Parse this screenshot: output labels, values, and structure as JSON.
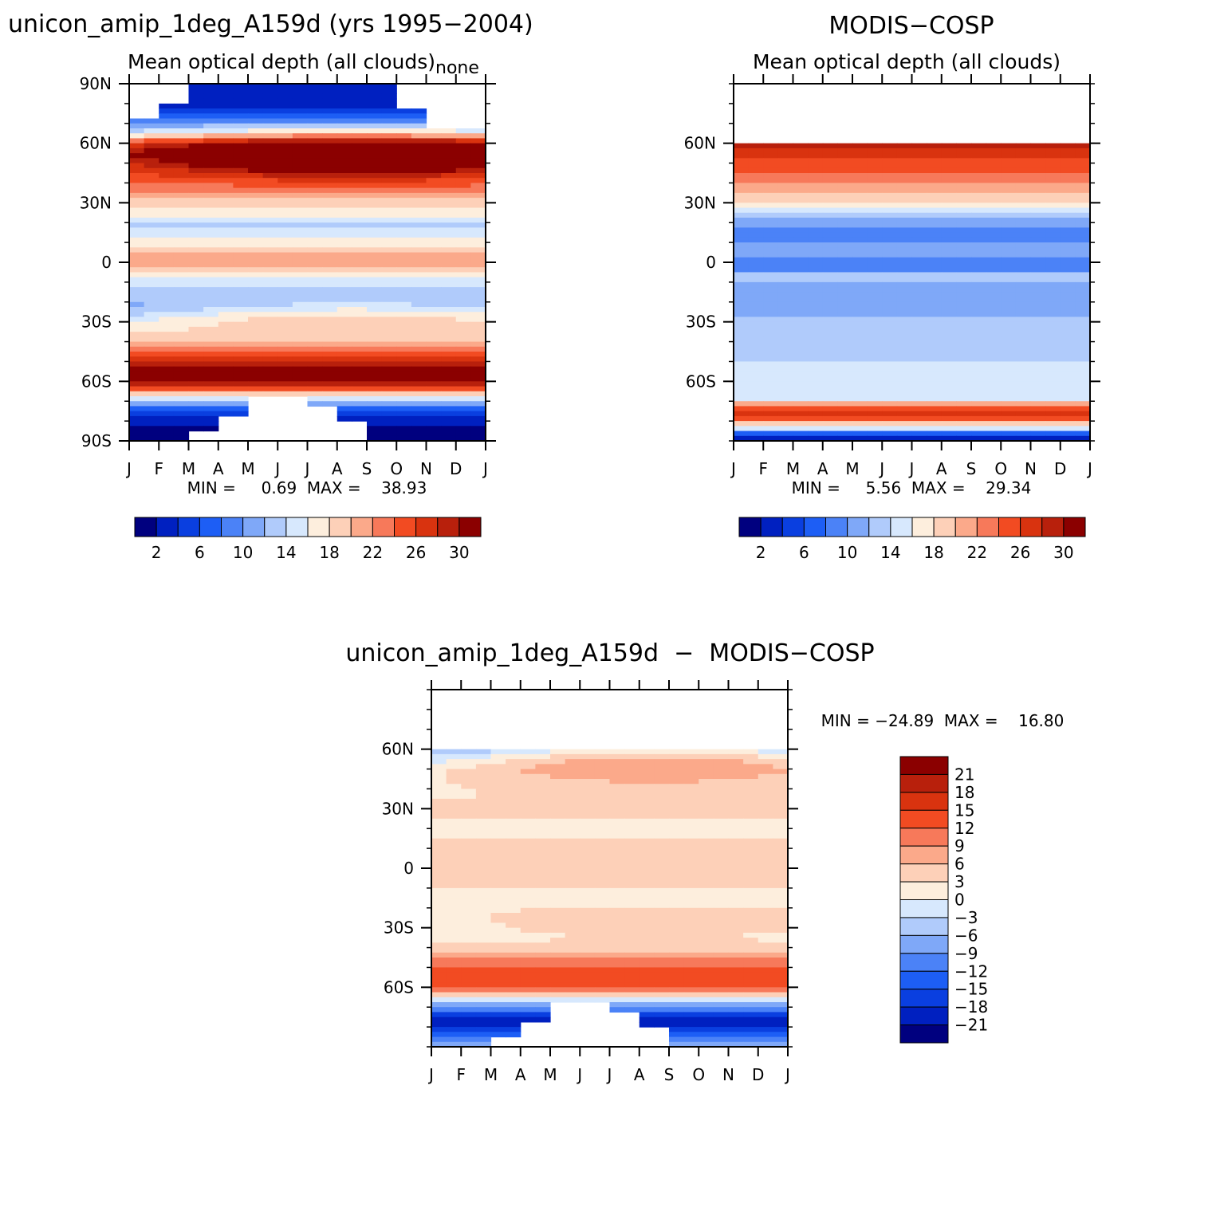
{
  "colors": {
    "seq": [
      "#00007f",
      "#0020c0",
      "#0a3fe0",
      "#1d5ef5",
      "#4b82f7",
      "#7fa8f8",
      "#b0cbfb",
      "#d7e8fd",
      "#fdeedd",
      "#fdd0b8",
      "#fba98a",
      "#f7795a",
      "#f24b22",
      "#d9330f",
      "#b8200c",
      "#8b0000"
    ],
    "div": [
      "#00007f",
      "#0020c0",
      "#0a3fe0",
      "#1d5ef5",
      "#4b82f7",
      "#7fa8f8",
      "#b0cbfb",
      "#d7e8fd",
      "#fdeedd",
      "#fdd0b8",
      "#fba98a",
      "#f7795a",
      "#f24b22",
      "#d9330f",
      "#b8200c",
      "#8b0000"
    ]
  },
  "chart_data": [
    {
      "type": "heatmap",
      "id": "model",
      "title": "unicon_amip_1deg_A159d (yrs 1995−2004)",
      "subtitle": "Mean optical depth (all clouds)",
      "corner_label": "none",
      "x_tick_labels": [
        "J",
        "F",
        "M",
        "A",
        "M",
        "J",
        "J",
        "A",
        "S",
        "O",
        "N",
        "D",
        "J"
      ],
      "y_tick_labels": [
        "90N",
        "60N",
        "30N",
        "0",
        "30S",
        "60S",
        "90S"
      ],
      "y_tick_values": [
        90,
        60,
        30,
        0,
        -30,
        -60,
        -90
      ],
      "ylim": [
        -90,
        90
      ],
      "xlim": [
        0,
        12
      ],
      "stats": "MIN =     0.69  MAX =    38.93",
      "levels": [
        0,
        2,
        4,
        6,
        8,
        10,
        12,
        14,
        16,
        18,
        20,
        22,
        24,
        26,
        28,
        30,
        32
      ],
      "colorbar_labels": [
        "2",
        "6",
        "10",
        "14",
        "18",
        "22",
        "26",
        "30"
      ],
      "zonal_profile_lat": [
        90,
        80,
        75,
        70,
        65,
        60,
        55,
        50,
        45,
        40,
        35,
        30,
        25,
        20,
        15,
        10,
        5,
        0,
        -5,
        -10,
        -15,
        -20,
        -25,
        -30,
        -35,
        -40,
        -45,
        -50,
        -55,
        -60,
        -65,
        -70,
        -75,
        -80,
        -85,
        -90
      ],
      "zonal_profile_value": [
        2,
        3,
        6,
        10,
        16,
        28,
        33,
        30,
        27,
        24,
        22,
        19,
        17,
        13,
        15,
        17,
        20,
        21,
        17,
        15,
        13,
        12,
        14,
        17,
        18,
        20,
        24,
        28,
        32,
        30,
        22,
        12,
        6,
        3,
        1,
        1
      ],
      "missing_regions": [
        {
          "month_from": 0,
          "month_to": 1,
          "lat_from": 72,
          "lat_to": 90
        },
        {
          "month_from": 1,
          "month_to": 2,
          "lat_from": 81,
          "lat_to": 90
        },
        {
          "month_from": 9,
          "month_to": 10,
          "lat_from": 77,
          "lat_to": 90
        },
        {
          "month_from": 10,
          "month_to": 12,
          "lat_from": 68,
          "lat_to": 90
        },
        {
          "month_from": 2,
          "month_to": 3,
          "lat_from": -90,
          "lat_to": -86
        },
        {
          "month_from": 3,
          "month_to": 4,
          "lat_from": -90,
          "lat_to": -77
        },
        {
          "month_from": 4,
          "month_to": 6,
          "lat_from": -90,
          "lat_to": -68
        },
        {
          "month_from": 6,
          "month_to": 7,
          "lat_from": -90,
          "lat_to": -72
        },
        {
          "month_from": 7,
          "month_to": 8,
          "lat_from": -90,
          "lat_to": -81
        }
      ]
    },
    {
      "type": "heatmap",
      "id": "obs",
      "title": "MODIS−COSP",
      "subtitle": "Mean optical depth (all clouds)",
      "x_tick_labels": [
        "J",
        "F",
        "M",
        "A",
        "M",
        "J",
        "J",
        "A",
        "S",
        "O",
        "N",
        "D",
        "J"
      ],
      "y_tick_labels": [
        "60N",
        "30N",
        "0",
        "30S",
        "60S"
      ],
      "y_tick_values": [
        60,
        30,
        0,
        -30,
        -60
      ],
      "ylim": [
        -90,
        90
      ],
      "xlim": [
        0,
        12
      ],
      "stats": "MIN =     5.56  MAX =    29.34",
      "levels": [
        0,
        2,
        4,
        6,
        8,
        10,
        12,
        14,
        16,
        18,
        20,
        22,
        24,
        26,
        28,
        30,
        32
      ],
      "colorbar_labels": [
        "2",
        "6",
        "10",
        "14",
        "18",
        "22",
        "26",
        "30"
      ],
      "bands": [
        {
          "lat_from": 60,
          "lat_to": 90,
          "value": null
        },
        {
          "lat_from": 57,
          "lat_to": 60,
          "value": 29
        },
        {
          "lat_from": 52,
          "lat_to": 57,
          "value": 27
        },
        {
          "lat_from": 45,
          "lat_to": 52,
          "value": 25
        },
        {
          "lat_from": 40,
          "lat_to": 45,
          "value": 23
        },
        {
          "lat_from": 35,
          "lat_to": 40,
          "value": 21
        },
        {
          "lat_from": 31,
          "lat_to": 35,
          "value": 19
        },
        {
          "lat_from": 28,
          "lat_to": 31,
          "value": 17
        },
        {
          "lat_from": 25,
          "lat_to": 28,
          "value": 15
        },
        {
          "lat_from": 22,
          "lat_to": 25,
          "value": 13
        },
        {
          "lat_from": 17,
          "lat_to": 22,
          "value": 11
        },
        {
          "lat_from": 9,
          "lat_to": 17,
          "value": 9
        },
        {
          "lat_from": 3,
          "lat_to": 9,
          "value": 11
        },
        {
          "lat_from": -5,
          "lat_to": 3,
          "value": 9
        },
        {
          "lat_from": -10,
          "lat_to": -5,
          "value": 13
        },
        {
          "lat_from": -27,
          "lat_to": -10,
          "value": 11
        },
        {
          "lat_from": -49,
          "lat_to": -27,
          "value": 13
        },
        {
          "lat_from": -71,
          "lat_to": -49,
          "value": 15
        },
        {
          "lat_from": -73,
          "lat_to": -71,
          "value": 21
        },
        {
          "lat_from": -75,
          "lat_to": -73,
          "value": 25
        },
        {
          "lat_from": -78,
          "lat_to": -75,
          "value": 27
        },
        {
          "lat_from": -80,
          "lat_to": -78,
          "value": 25
        },
        {
          "lat_from": -82,
          "lat_to": -80,
          "value": 19
        },
        {
          "lat_from": -84,
          "lat_to": -82,
          "value": 15
        },
        {
          "lat_from": -86,
          "lat_to": -84,
          "value": 11
        },
        {
          "lat_from": -88,
          "lat_to": -86,
          "value": 7
        },
        {
          "lat_from": -90,
          "lat_to": -88,
          "value": 3
        }
      ]
    },
    {
      "type": "heatmap",
      "id": "diff",
      "title": "unicon_amip_1deg_A159d  −  MODIS−COSP",
      "x_tick_labels": [
        "J",
        "F",
        "M",
        "A",
        "M",
        "J",
        "J",
        "A",
        "S",
        "O",
        "N",
        "D",
        "J"
      ],
      "y_tick_labels": [
        "60N",
        "30N",
        "0",
        "30S",
        "60S"
      ],
      "y_tick_values": [
        60,
        30,
        0,
        -30,
        -60
      ],
      "ylim": [
        -90,
        90
      ],
      "xlim": [
        0,
        12
      ],
      "stats": "MIN = −24.89  MAX =    16.80",
      "levels": [
        -24,
        -21,
        -18,
        -15,
        -12,
        -9,
        -6,
        -3,
        0,
        3,
        6,
        9,
        12,
        15,
        18,
        21,
        24
      ],
      "colorbar_labels": [
        "21",
        "18",
        "15",
        "12",
        "9",
        "6",
        "3",
        "0",
        "−3",
        "−6",
        "−9",
        "−12",
        "−15",
        "−18",
        "−21"
      ],
      "zonal_profile_lat": [
        60,
        55,
        50,
        45,
        40,
        35,
        30,
        25,
        20,
        15,
        10,
        5,
        0,
        -5,
        -10,
        -15,
        -20,
        -25,
        -30,
        -35,
        -40,
        -45,
        -50,
        -55,
        -60,
        -65,
        -70,
        -75,
        -80,
        -85,
        -90
      ],
      "zonal_profile_value": [
        -5,
        1,
        4,
        4,
        3,
        3,
        4,
        3,
        2,
        3,
        6,
        4,
        4,
        4,
        3,
        2,
        2,
        3,
        2,
        2,
        4,
        8,
        12,
        14,
        12,
        2,
        -9,
        -20,
        -18,
        -12,
        -8
      ],
      "missing_regions": [
        {
          "month_from": 0,
          "month_to": 12,
          "lat_from": 60,
          "lat_to": 90
        },
        {
          "month_from": 2,
          "month_to": 3,
          "lat_from": -90,
          "lat_to": -86
        },
        {
          "month_from": 3,
          "month_to": 4,
          "lat_from": -90,
          "lat_to": -77
        },
        {
          "month_from": 4,
          "month_to": 6,
          "lat_from": -90,
          "lat_to": -68
        },
        {
          "month_from": 6,
          "month_to": 7,
          "lat_from": -90,
          "lat_to": -72
        },
        {
          "month_from": 7,
          "month_to": 8,
          "lat_from": -90,
          "lat_to": -81
        }
      ]
    }
  ]
}
